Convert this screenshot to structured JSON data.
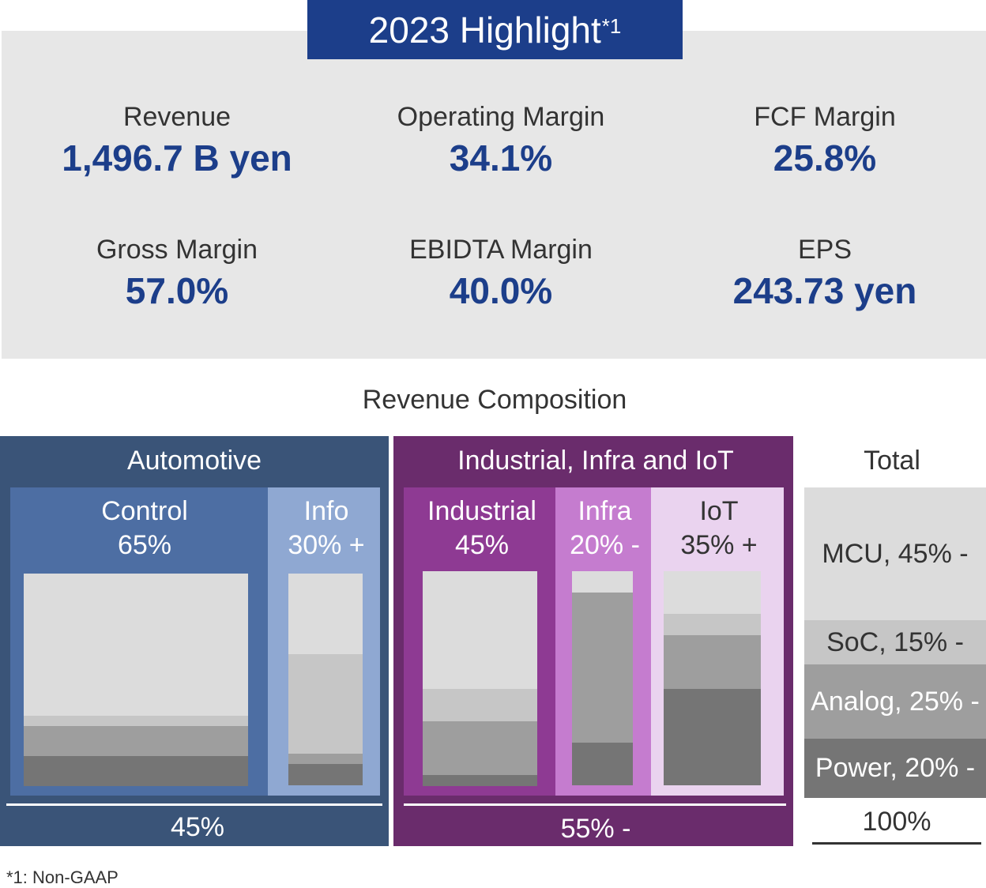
{
  "highlight": {
    "title": "2023 Highlight",
    "title_sup": "*1",
    "metrics": [
      {
        "label": "Revenue",
        "value": "1,496.7 B yen"
      },
      {
        "label": "Operating Margin",
        "value": "34.1%"
      },
      {
        "label": "FCF Margin",
        "value": "25.8%"
      },
      {
        "label": "Gross Margin",
        "value": "57.0%"
      },
      {
        "label": "EBIDTA Margin",
        "value": "40.0%"
      },
      {
        "label": "EPS",
        "value": "243.73 yen"
      }
    ]
  },
  "composition": {
    "title": "Revenue Composition",
    "groups": [
      {
        "name": "Automotive",
        "share": "45%",
        "color": "#3a5478",
        "subs": [
          {
            "name": "Control",
            "share": "65%",
            "color": "#4d6ea3",
            "mix": {
              "MCU": 0.67,
              "SoC": 0.05,
              "Analog": 0.14,
              "Power": 0.14
            }
          },
          {
            "name": "Info",
            "share": "30% +",
            "color": "#8fa8d2",
            "mix": {
              "MCU": 0.38,
              "SoC": 0.47,
              "Analog": 0.05,
              "Power": 0.1
            }
          }
        ]
      },
      {
        "name": "Industrial, Infra and IoT",
        "share": "55% -",
        "color": "#6a2c6c",
        "subs": [
          {
            "name": "Industrial",
            "share": "45%",
            "color": "#8e3a93",
            "mix": {
              "MCU": 0.55,
              "SoC": 0.15,
              "Analog": 0.25,
              "Power": 0.05
            }
          },
          {
            "name": "Infra",
            "share": "20% -",
            "color": "#c57ccf",
            "mix": {
              "MCU": 0.1,
              "SoC": 0.0,
              "Analog": 0.7,
              "Power": 0.2
            }
          },
          {
            "name": "IoT",
            "share": "35% +",
            "color": "#ead3ef",
            "mix": {
              "MCU": 0.2,
              "SoC": 0.1,
              "Analog": 0.25,
              "Power": 0.45
            }
          }
        ]
      }
    ],
    "total": {
      "label": "Total",
      "sum": "100%",
      "items": [
        {
          "name": "MCU",
          "text": "MCU, 45% -",
          "share": 0.45,
          "color": "#dcdcdc"
        },
        {
          "name": "SoC",
          "text": "SoC, 15% -",
          "share": 0.15,
          "color": "#c6c6c6"
        },
        {
          "name": "Analog",
          "text": "Analog, 25% -",
          "share": 0.25,
          "color": "#9e9e9e"
        },
        {
          "name": "Power",
          "text": "Power, 20% -",
          "share": 0.2,
          "color": "#757575"
        }
      ]
    }
  },
  "footnote": "*1: Non-GAAP"
}
